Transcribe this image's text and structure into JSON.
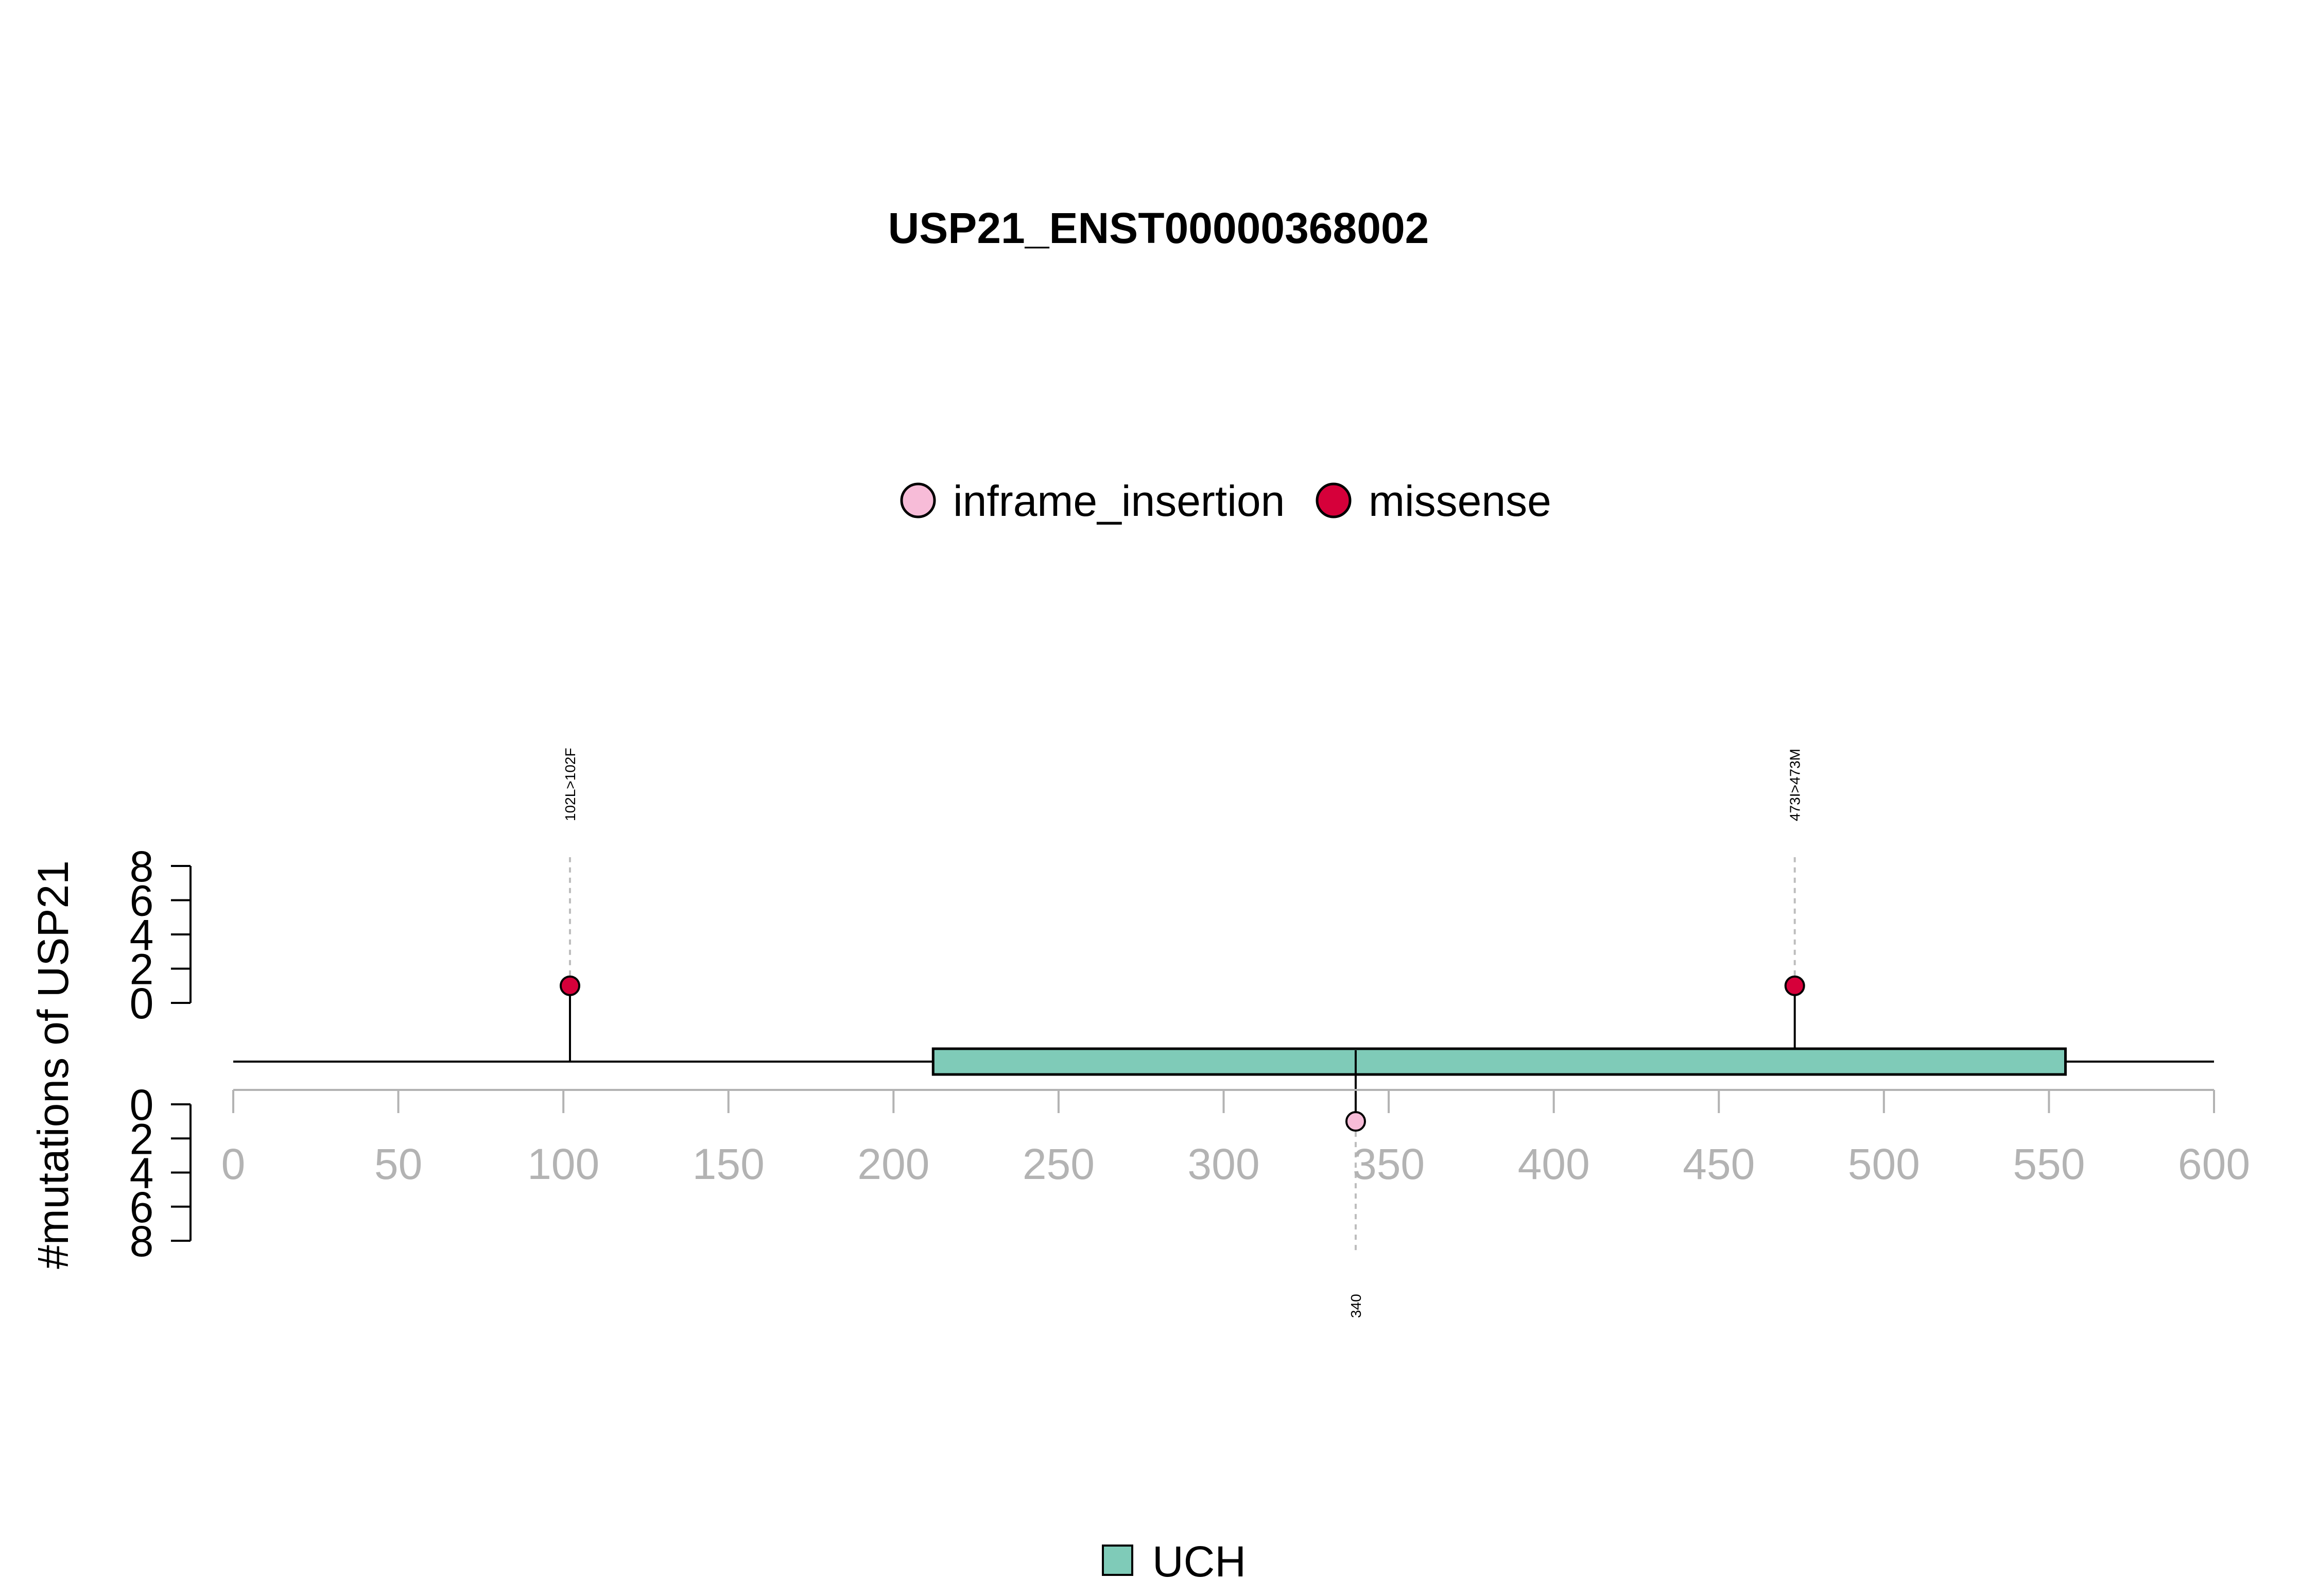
{
  "chart_data": {
    "type": "lollipop",
    "title": "USP21_ENST00000368002",
    "ylabel": "#mutations of USP21",
    "xlim": [
      0,
      600
    ],
    "x_ticks": [
      0,
      50,
      100,
      150,
      200,
      250,
      300,
      350,
      400,
      450,
      500,
      550,
      600
    ],
    "y_ticks": [
      0,
      2,
      4,
      6,
      8
    ],
    "ylim": [
      0,
      8
    ],
    "mutation_legend": [
      {
        "label": "inframe_insertion",
        "color": "#f7bcd8"
      },
      {
        "label": "missense",
        "color": "#d6003a"
      }
    ],
    "mutations": [
      {
        "position": 102,
        "count": 1,
        "label": "102L>102F",
        "type": "missense",
        "side": "top",
        "color": "#d6003a"
      },
      {
        "position": 473,
        "count": 1,
        "label": "473I>473M",
        "type": "missense",
        "side": "top",
        "color": "#d6003a"
      },
      {
        "position": 340,
        "count": 1,
        "label": "340",
        "type": "inframe_insertion",
        "side": "bottom",
        "color": "#f7bcd8"
      }
    ],
    "protein_length": 600,
    "domains": [
      {
        "name": "UCH",
        "start": 212,
        "end": 555,
        "color": "#7fcbb8"
      }
    ],
    "domain_legend": [
      {
        "label": "UCH",
        "color": "#7fcbb8"
      }
    ]
  }
}
